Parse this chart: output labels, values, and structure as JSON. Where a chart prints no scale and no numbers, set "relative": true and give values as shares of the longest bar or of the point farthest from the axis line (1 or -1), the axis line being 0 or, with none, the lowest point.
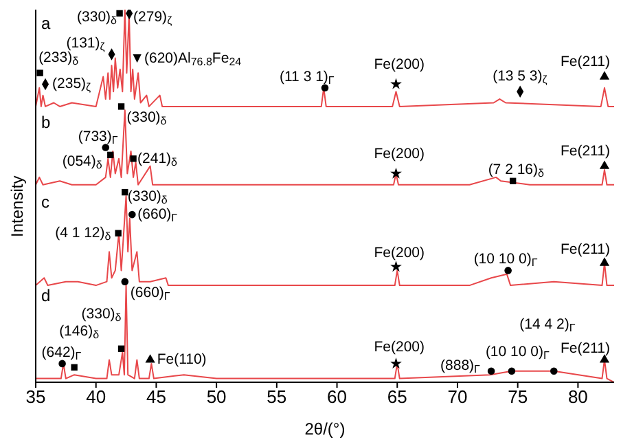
{
  "chart_data": {
    "type": "line",
    "relative": true,
    "xlabel": "2θ/(°)",
    "ylabel": "Intensity",
    "xlim": [
      35,
      83
    ],
    "xticks": [
      35,
      40,
      45,
      50,
      55,
      60,
      65,
      70,
      75,
      80
    ],
    "tick_labels": "x",
    "grid": false,
    "legend": false,
    "series": [
      {
        "color": "#e8474a",
        "x": [
          35,
          35.3,
          35.45,
          35.6,
          35.8,
          36.5,
          37,
          38,
          40,
          40.6,
          40.8,
          41,
          41.15,
          41.3,
          41.45,
          41.6,
          41.8,
          42,
          42.2,
          42.4,
          42.55,
          42.75,
          42.9,
          43.05,
          43.2,
          43.5,
          43.7,
          44.2,
          44.4,
          45.3,
          45.5,
          50,
          58.7,
          58.9,
          59.1,
          64.6,
          64.9,
          65.2,
          73,
          73.5,
          74,
          81.9,
          82.2,
          82.5,
          83
        ],
        "values": [
          0.74,
          0.79,
          0.74,
          0.77,
          0.74,
          0.75,
          0.74,
          0.75,
          0.74,
          0.82,
          0.76,
          0.83,
          0.76,
          0.85,
          0.78,
          0.87,
          0.79,
          0.84,
          0.78,
          1.0,
          0.83,
          0.99,
          0.78,
          0.84,
          0.76,
          0.83,
          0.75,
          0.77,
          0.74,
          0.77,
          0.74,
          0.74,
          0.74,
          0.79,
          0.74,
          0.74,
          0.78,
          0.74,
          0.75,
          0.76,
          0.75,
          0.74,
          0.79,
          0.74,
          0.74
        ]
      },
      {
        "color": "#e8474a",
        "x": [
          35,
          35.3,
          35.6,
          37,
          38,
          40,
          40.8,
          41,
          41.2,
          41.4,
          41.6,
          41.9,
          42.1,
          42.4,
          42.6,
          42.9,
          43.1,
          43.3,
          43.5,
          44.5,
          44.7,
          50,
          64.7,
          64.9,
          65.1,
          71,
          73.2,
          73.6,
          76,
          82,
          82.2,
          82.4,
          83
        ],
        "values": [
          0.53,
          0.55,
          0.53,
          0.54,
          0.53,
          0.53,
          0.55,
          0.6,
          0.55,
          0.62,
          0.56,
          0.6,
          0.55,
          0.73,
          0.56,
          0.62,
          0.55,
          0.59,
          0.53,
          0.58,
          0.53,
          0.53,
          0.53,
          0.56,
          0.53,
          0.53,
          0.55,
          0.54,
          0.53,
          0.53,
          0.57,
          0.53,
          0.53
        ]
      },
      {
        "color": "#e8474a",
        "x": [
          35,
          35.7,
          36,
          37.5,
          38.5,
          40,
          40.9,
          41.1,
          41.3,
          41.6,
          41.9,
          42.1,
          42.5,
          42.65,
          42.8,
          43,
          43.4,
          43.6,
          44.5,
          45.8,
          46,
          60,
          64.8,
          65,
          65.2,
          71,
          72.8,
          74.1,
          74.4,
          78,
          82,
          82.2,
          82.4,
          83
        ],
        "values": [
          0.26,
          0.28,
          0.26,
          0.27,
          0.27,
          0.26,
          0.27,
          0.35,
          0.28,
          0.3,
          0.4,
          0.3,
          0.5,
          0.35,
          0.44,
          0.3,
          0.35,
          0.27,
          0.27,
          0.28,
          0.26,
          0.26,
          0.26,
          0.3,
          0.26,
          0.26,
          0.28,
          0.29,
          0.26,
          0.27,
          0.26,
          0.32,
          0.26,
          0.26
        ]
      },
      {
        "color": "#e8474a",
        "x": [
          35,
          36,
          37.1,
          37.3,
          37.5,
          38.2,
          40,
          40.9,
          41.1,
          41.3,
          41.9,
          42.2,
          42.35,
          42.5,
          42.65,
          43.2,
          43.4,
          43.6,
          44.4,
          44.6,
          44.8,
          47.3,
          50,
          64.8,
          65,
          65.2,
          72.7,
          74.5,
          78,
          82,
          82.2,
          82.4,
          83
        ],
        "values": [
          0.01,
          0.01,
          0.01,
          0.05,
          0.01,
          0.02,
          0.01,
          0.01,
          0.06,
          0.02,
          0.02,
          0.08,
          0.02,
          0.26,
          0.02,
          0.01,
          0.06,
          0.01,
          0.01,
          0.05,
          0.01,
          0.02,
          0.01,
          0.01,
          0.05,
          0.01,
          0.02,
          0.03,
          0.03,
          0.01,
          0.06,
          0.01,
          0
        ]
      },
      {
        "type": "scatter",
        "marker": "square",
        "color": "#000000",
        "x": [
          35.35,
          41.96,
          42.1,
          41.2,
          43.1,
          74.6,
          42.4,
          41.85,
          38.2,
          42.1
        ],
        "values": [
          0.83,
          0.99,
          0.74,
          0.61,
          0.6,
          0.54,
          0.51,
          0.4,
          0.04,
          0.09
        ]
      },
      {
        "type": "scatter",
        "marker": "diamond",
        "color": "#000000",
        "x": [
          35.8,
          41.3,
          42.76,
          75.2
        ],
        "values": [
          0.8,
          0.88,
          0.99,
          0.78
        ]
      },
      {
        "type": "scatter",
        "marker": "circle",
        "color": "#000000",
        "x": [
          59,
          40.8,
          43,
          74.2,
          42.4,
          37.2,
          72.8,
          74.5,
          78
        ],
        "values": [
          0.79,
          0.63,
          0.45,
          0.3,
          0.27,
          0.05,
          0.03,
          0.03,
          0.03
        ]
      },
      {
        "type": "scatter",
        "marker": "star",
        "color": "#000000",
        "x": [
          64.9,
          64.9,
          64.9,
          64.9
        ],
        "values": [
          0.8,
          0.56,
          0.31,
          0.05
        ]
      },
      {
        "type": "scatter",
        "marker": "triangle",
        "color": "#000000",
        "x": [
          82.2,
          82.2,
          82.2,
          82.2,
          44.5
        ],
        "values": [
          0.82,
          0.58,
          0.32,
          0.06,
          0.06
        ]
      }
    ],
    "annotations": [
      "a",
      "b",
      "c",
      "d",
      {
        "text": "(233)$_{δ}$",
        "x": 35.35,
        "y": 0.83
      },
      {
        "text": "(235)$_{ζ}$",
        "x": 35.8,
        "y": 0.8
      },
      {
        "text": "(131)$_{ζ}$",
        "x": 41.3,
        "y": 0.88
      },
      {
        "text": "(330)$_{δ}$",
        "x": 41.96,
        "y": 0.99
      },
      {
        "text": "(279)$_{ζ}$",
        "x": 42.76,
        "y": 0.99
      },
      {
        "text": "▼(620)Al$_{76.8}$Fe$_{24}$",
        "x": 43.05,
        "y": 0.84
      },
      {
        "text": "(11 3 1)$_{Γ}$",
        "x": 59,
        "y": 0.79
      },
      {
        "text": "Fe(200)",
        "x": 64.9,
        "y": 0.8
      },
      {
        "text": "(13 5 3)$_{ζ}$",
        "x": 75.2,
        "y": 0.78
      },
      {
        "text": "Fe(211)",
        "x": 82.2,
        "y": 0.82
      },
      {
        "text": "(330)$_{δ}$",
        "x": 42.1,
        "y": 0.74
      },
      {
        "text": "(733)$_{Γ}$",
        "x": 40.8,
        "y": 0.63
      },
      {
        "text": "(054)$_{δ}$",
        "x": 41.2,
        "y": 0.61
      },
      {
        "text": "(241)$_{δ}$",
        "x": 43.1,
        "y": 0.6
      },
      {
        "text": "Fe(200)",
        "x": 64.9,
        "y": 0.56
      },
      {
        "text": "(7 2 16)$_{δ}$",
        "x": 74.6,
        "y": 0.54
      },
      {
        "text": "Fe(211)",
        "x": 82.2,
        "y": 0.58
      },
      {
        "text": "(330)$_{δ}$",
        "x": 42.4,
        "y": 0.51
      },
      {
        "text": "(660)$_{Γ}$",
        "x": 43,
        "y": 0.45
      },
      {
        "text": "(4 1 12)$_{δ}$",
        "x": 41.85,
        "y": 0.4
      },
      {
        "text": "Fe(200)",
        "x": 64.9,
        "y": 0.31
      },
      {
        "text": "(10 10 0)$_{Γ}$",
        "x": 74.2,
        "y": 0.3
      },
      {
        "text": "Fe(211)",
        "x": 82.2,
        "y": 0.32
      },
      {
        "text": "(660)$_{Γ}$",
        "x": 42.4,
        "y": 0.27
      },
      {
        "text": "(330)$_{δ}$",
        "x": 42.1,
        "y": 0.09
      },
      {
        "text": "(146)$_{δ}$",
        "x": 38.2,
        "y": 0.04
      },
      {
        "text": "(642)$_{Γ}$",
        "x": 37.2,
        "y": 0.05
      },
      {
        "text": "Fe(110)",
        "x": 44.5,
        "y": 0.06
      },
      {
        "text": "Fe(200)",
        "x": 64.9,
        "y": 0.05
      },
      {
        "text": "(888)$_{Γ}$",
        "x": 72.8,
        "y": 0.03
      },
      {
        "text": "(10 10 0)$_{Γ}$",
        "x": 74.5,
        "y": 0.03
      },
      {
        "text": "(14 4 2)$_{Γ}$",
        "x": 78,
        "y": 0.03
      },
      {
        "text": "Fe(211)",
        "x": 82.2,
        "y": 0.06
      }
    ]
  }
}
